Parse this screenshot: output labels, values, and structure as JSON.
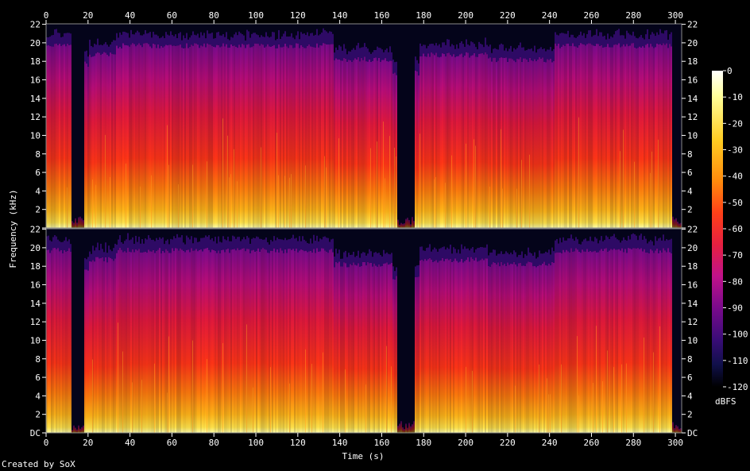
{
  "chart_data": {
    "type": "heatmap",
    "subtype": "spectrogram",
    "channels": 2,
    "x": {
      "label": "Time (s)",
      "range": [
        0,
        303
      ],
      "ticks": [
        "0",
        "20",
        "40",
        "60",
        "80",
        "100",
        "120",
        "140",
        "160",
        "180",
        "200",
        "220",
        "240",
        "260",
        "280",
        "300"
      ],
      "tick_values": [
        0,
        20,
        40,
        60,
        80,
        100,
        120,
        140,
        160,
        180,
        200,
        220,
        240,
        260,
        280,
        300
      ]
    },
    "y": {
      "label": "Frequency (kHz)",
      "range": [
        0,
        22.05
      ],
      "ticks": [
        "DC",
        "2",
        "4",
        "6",
        "8",
        "10",
        "12",
        "14",
        "16",
        "18",
        "20",
        "22"
      ],
      "tick_values": [
        0,
        2,
        4,
        6,
        8,
        10,
        12,
        14,
        16,
        18,
        20,
        22
      ]
    },
    "colorbar": {
      "label": "dBFS",
      "range": [
        -120,
        0
      ],
      "ticks": [
        "0",
        "-10",
        "-20",
        "-30",
        "-40",
        "-50",
        "-60",
        "-70",
        "-80",
        "-90",
        "-100",
        "-110",
        "-120"
      ],
      "tick_values": [
        0,
        -10,
        -20,
        -30,
        -40,
        -50,
        -60,
        -70,
        -80,
        -90,
        -100,
        -110,
        -120
      ]
    },
    "frequency_cutoff_khz": [
      {
        "t_start": 0,
        "t_end": 12,
        "khz": 20
      },
      {
        "t_start": 12,
        "t_end": 20,
        "khz": 18
      },
      {
        "t_start": 20,
        "t_end": 33,
        "khz": 19
      },
      {
        "t_start": 33,
        "t_end": 137,
        "khz": 20
      },
      {
        "t_start": 137,
        "t_end": 165,
        "khz": 18.5
      },
      {
        "t_start": 165,
        "t_end": 178,
        "khz": 17
      },
      {
        "t_start": 178,
        "t_end": 210,
        "khz": 19
      },
      {
        "t_start": 210,
        "t_end": 242,
        "khz": 18.5
      },
      {
        "t_start": 242,
        "t_end": 300,
        "khz": 20
      }
    ],
    "quiet_sections_s": [
      [
        12,
        18
      ],
      [
        167,
        175
      ],
      [
        298,
        303
      ]
    ],
    "annotations": []
  },
  "credit": "Created by SoX",
  "colors": {
    "background": "#000000",
    "axis": "#ffffff",
    "palette": [
      "#000000",
      "#10104a",
      "#3a0c78",
      "#7a0a8c",
      "#c0128a",
      "#e62040",
      "#ff4018",
      "#ff8a0c",
      "#ffcc22",
      "#ffff9a",
      "#ffffff"
    ]
  }
}
